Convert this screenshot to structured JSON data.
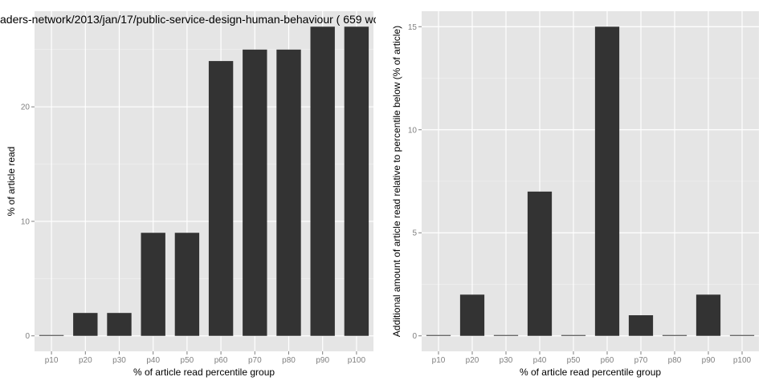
{
  "chart_data": [
    {
      "type": "bar",
      "title": "aders-network/2013/jan/17/public-service-design-human-behaviour ( 659 wo",
      "xlabel": "% of article read percentile group",
      "ylabel": "% of article read",
      "categories": [
        "p10",
        "p20",
        "p30",
        "p40",
        "p50",
        "p60",
        "p70",
        "p80",
        "p90",
        "p100"
      ],
      "values": [
        0,
        2,
        2,
        9,
        9,
        24,
        25,
        25,
        27,
        27
      ],
      "ylim": [
        -1.35,
        28.35
      ],
      "yticks": [
        0,
        10,
        20
      ],
      "grid": true,
      "bar_color": "#333333",
      "panel_color": "#e5e5e5"
    },
    {
      "type": "bar",
      "title": "",
      "xlabel": "% of article read percentile group",
      "ylabel": "Additional amount of article read relative to percentile below (% of article)",
      "categories": [
        "p10",
        "p20",
        "p30",
        "p40",
        "p50",
        "p60",
        "p70",
        "p80",
        "p90",
        "p100"
      ],
      "values": [
        0,
        2,
        0,
        7,
        0,
        15,
        1,
        0,
        2,
        0
      ],
      "ylim": [
        -0.75,
        15.75
      ],
      "yticks": [
        0,
        5,
        10,
        15
      ],
      "grid": true,
      "bar_color": "#333333",
      "panel_color": "#e5e5e5"
    }
  ]
}
